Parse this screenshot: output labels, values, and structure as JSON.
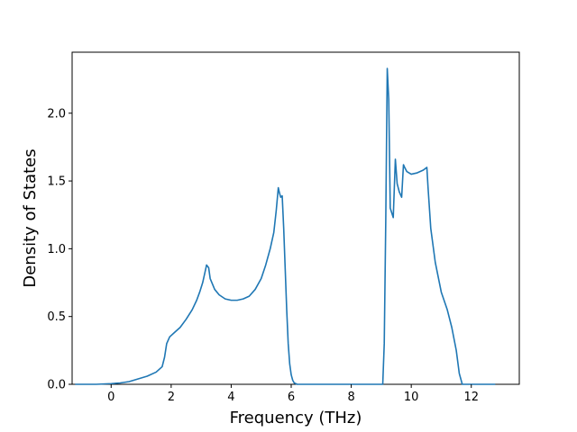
{
  "chart_data": {
    "type": "line",
    "title": "",
    "xlabel": "Frequency (THz)",
    "ylabel": "Density of States",
    "xlim": [
      -1.3,
      13.6
    ],
    "ylim": [
      0,
      2.45
    ],
    "xticks": [
      0,
      2,
      4,
      6,
      8,
      10,
      12
    ],
    "yticks": [
      0.0,
      0.5,
      1.0,
      1.5,
      2.0
    ],
    "xtick_labels": [
      "0",
      "2",
      "4",
      "6",
      "8",
      "10",
      "12"
    ],
    "ytick_labels": [
      "0.0",
      "0.5",
      "1.0",
      "1.5",
      "2.0"
    ],
    "grid": false,
    "legend": false,
    "line_color": "#1f77b4",
    "series": [
      {
        "x": [
          -1.2,
          -0.5,
          0.0,
          0.3,
          0.6,
          0.9,
          1.2,
          1.5,
          1.7,
          1.78,
          1.85,
          1.95,
          2.1,
          2.3,
          2.5,
          2.7,
          2.85,
          2.95,
          3.05,
          3.12,
          3.18,
          3.25,
          3.3,
          3.45,
          3.6,
          3.8,
          4.0,
          4.2,
          4.4,
          4.6,
          4.8,
          5.0,
          5.15,
          5.3,
          5.42,
          5.5,
          5.57,
          5.6,
          5.65,
          5.7,
          5.75,
          5.8,
          5.85,
          5.9,
          5.95,
          6.0,
          6.05,
          6.1,
          6.2,
          6.3,
          6.5,
          8.0,
          9.05,
          9.1,
          9.15,
          9.2,
          9.25,
          9.3,
          9.4,
          9.47,
          9.53,
          9.6,
          9.68,
          9.74,
          9.78,
          9.85,
          10.0,
          10.2,
          10.4,
          10.52,
          10.56,
          10.65,
          10.8,
          11.0,
          11.2,
          11.35,
          11.5,
          11.6,
          11.7,
          12.0,
          12.8
        ],
        "y": [
          0.0,
          0.0,
          0.005,
          0.01,
          0.02,
          0.04,
          0.06,
          0.09,
          0.13,
          0.2,
          0.3,
          0.35,
          0.38,
          0.42,
          0.48,
          0.55,
          0.62,
          0.68,
          0.75,
          0.82,
          0.88,
          0.86,
          0.78,
          0.7,
          0.66,
          0.63,
          0.62,
          0.62,
          0.63,
          0.65,
          0.7,
          0.78,
          0.88,
          1.0,
          1.12,
          1.28,
          1.45,
          1.42,
          1.38,
          1.39,
          1.15,
          0.85,
          0.55,
          0.3,
          0.15,
          0.07,
          0.03,
          0.01,
          0.0,
          0.0,
          0.0,
          0.0,
          0.0,
          0.3,
          1.2,
          2.33,
          2.1,
          1.3,
          1.23,
          1.66,
          1.48,
          1.42,
          1.38,
          1.62,
          1.6,
          1.57,
          1.55,
          1.56,
          1.58,
          1.6,
          1.45,
          1.15,
          0.9,
          0.68,
          0.55,
          0.42,
          0.25,
          0.08,
          0.0,
          0.0,
          0.0
        ]
      }
    ]
  }
}
